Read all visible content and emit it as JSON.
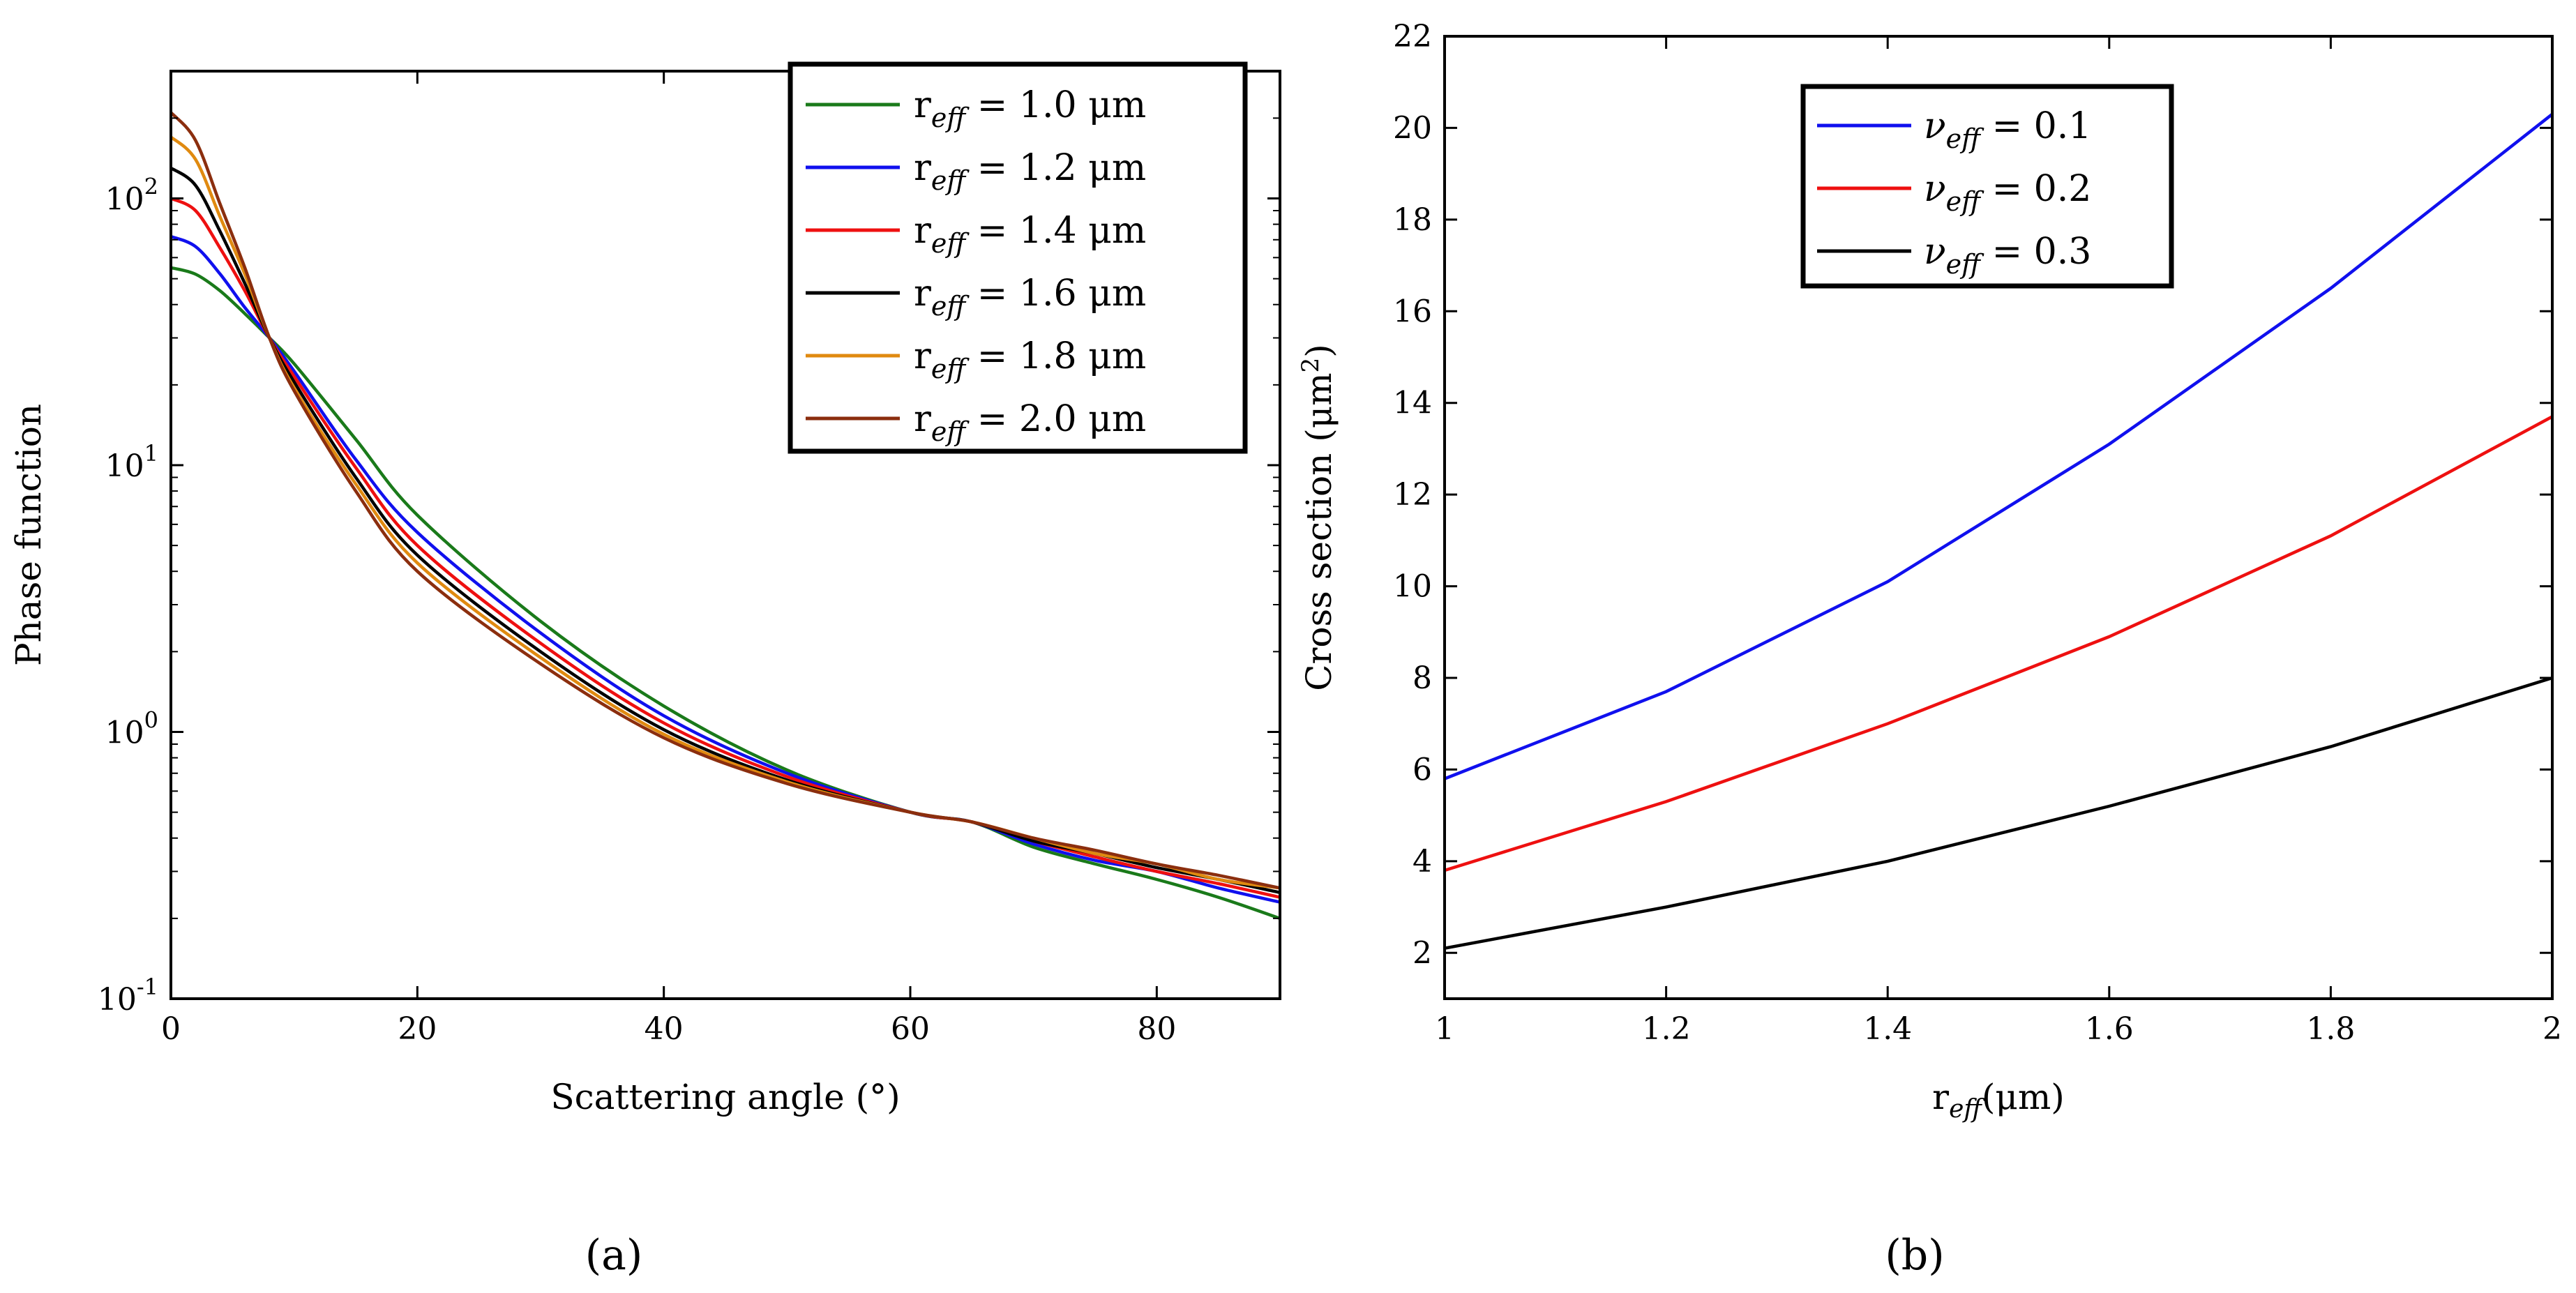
{
  "figure": {
    "panel_labels": [
      "(a)",
      "(b)"
    ]
  },
  "chart_data": [
    {
      "type": "line",
      "panel": "(a)",
      "xlabel": "Scattering angle (°)",
      "ylabel": "Phase function",
      "yscale": "log",
      "xlim": [
        0,
        90
      ],
      "ylim": [
        0.1,
        300
      ],
      "xticks": [
        0,
        20,
        40,
        60,
        80
      ],
      "yticks": [
        {
          "value": 0.1,
          "base": "10",
          "exp": "-1"
        },
        {
          "value": 1,
          "base": "10",
          "exp": "0"
        },
        {
          "value": 10,
          "base": "10",
          "exp": "1"
        },
        {
          "value": 100,
          "base": "10",
          "exp": "2"
        }
      ],
      "grid": false,
      "legend_position": "top-right",
      "x": [
        0,
        2,
        4,
        6,
        8,
        10,
        15,
        20,
        30,
        40,
        50,
        60,
        65,
        70,
        75,
        80,
        85,
        90
      ],
      "series": [
        {
          "name": "r_eff = 1.0 μm",
          "sub": "eff",
          "lhs": "r",
          "rhs": "= 1.0 μm",
          "color": "#1a7a1a",
          "values": [
            55,
            52,
            45,
            37,
            30,
            24,
            12.5,
            6.5,
            2.6,
            1.25,
            0.72,
            0.5,
            0.46,
            0.37,
            0.32,
            0.28,
            0.24,
            0.2
          ]
        },
        {
          "name": "r_eff = 1.2 μm",
          "sub": "eff",
          "lhs": "r",
          "rhs": "= 1.2 μm",
          "color": "#1010ee",
          "values": [
            72,
            66,
            52,
            39,
            30,
            22.5,
            10.5,
            5.6,
            2.35,
            1.15,
            0.7,
            0.5,
            0.46,
            0.38,
            0.33,
            0.3,
            0.26,
            0.23
          ]
        },
        {
          "name": "r_eff = 1.4 μm",
          "sub": "eff",
          "lhs": "r",
          "rhs": "= 1.4 μm",
          "color": "#ee1010",
          "values": [
            100,
            90,
            65,
            45,
            30,
            21.5,
            9.8,
            5.0,
            2.15,
            1.08,
            0.68,
            0.5,
            0.46,
            0.39,
            0.34,
            0.3,
            0.27,
            0.24
          ]
        },
        {
          "name": "r_eff = 1.6 μm",
          "sub": "eff",
          "lhs": "r",
          "rhs": "= 1.6 μm",
          "color": "#000000",
          "values": [
            130,
            112,
            75,
            48,
            30,
            20.5,
            9.0,
            4.6,
            2.0,
            1.02,
            0.66,
            0.5,
            0.46,
            0.39,
            0.35,
            0.31,
            0.28,
            0.25
          ]
        },
        {
          "name": "r_eff = 1.8 μm",
          "sub": "eff",
          "lhs": "r",
          "rhs": "= 1.8 μm",
          "color": "#e08a10",
          "values": [
            170,
            140,
            85,
            52,
            30,
            19.5,
            8.5,
            4.3,
            1.9,
            0.98,
            0.65,
            0.5,
            0.46,
            0.4,
            0.35,
            0.32,
            0.28,
            0.26
          ]
        },
        {
          "name": "r_eff = 2.0 μm",
          "sub": "eff",
          "lhs": "r",
          "rhs": "= 2.0 μm",
          "color": "#8b2e0e",
          "values": [
            210,
            165,
            95,
            55,
            30,
            19.0,
            8.0,
            4.0,
            1.8,
            0.95,
            0.64,
            0.5,
            0.46,
            0.4,
            0.36,
            0.32,
            0.29,
            0.26
          ]
        }
      ]
    },
    {
      "type": "line",
      "panel": "(b)",
      "xlabel": "r_eff(μm)",
      "xlabel_parts": {
        "lhs": "r",
        "sub": "eff",
        "rhs": "(μm)"
      },
      "ylabel": "Cross section (μm²)",
      "ylabel_parts": {
        "main": "Cross section (μm",
        "sup": "2",
        "close": ")"
      },
      "xlim": [
        1,
        2
      ],
      "ylim": [
        1,
        22
      ],
      "xticks": [
        "1",
        "1.2",
        "1.4",
        "1.6",
        "1.8",
        "2"
      ],
      "yticks": [
        2,
        4,
        6,
        8,
        10,
        12,
        14,
        16,
        18,
        20,
        22
      ],
      "grid": false,
      "legend_position": "top-center",
      "x": [
        1.0,
        1.2,
        1.4,
        1.6,
        1.8,
        2.0
      ],
      "series": [
        {
          "name": "ν_eff = 0.1",
          "lhs": "ν",
          "sub": "eff",
          "rhs": "= 0.1",
          "color": "#1010ee",
          "values": [
            5.8,
            7.7,
            10.1,
            13.1,
            16.5,
            20.3
          ]
        },
        {
          "name": "ν_eff = 0.2",
          "lhs": "ν",
          "sub": "eff",
          "rhs": "= 0.2",
          "color": "#ee1010",
          "values": [
            3.8,
            5.3,
            7.0,
            8.9,
            11.1,
            13.7
          ]
        },
        {
          "name": "ν_eff = 0.3",
          "lhs": "ν",
          "sub": "eff",
          "rhs": "= 0.3",
          "color": "#000000",
          "values": [
            2.1,
            3.0,
            4.0,
            5.2,
            6.5,
            8.0
          ]
        }
      ]
    }
  ]
}
